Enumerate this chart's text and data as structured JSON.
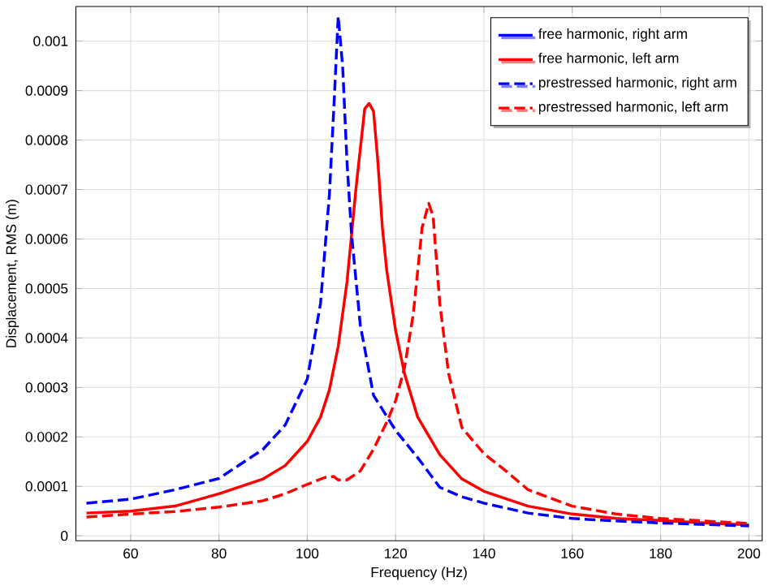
{
  "chart_data": {
    "type": "line",
    "xlabel": "Frequency (Hz)",
    "ylabel": "Displacement, RMS (m)",
    "xlim": [
      47.6,
      203
    ],
    "ylim": [
      -1e-05,
      0.00107
    ],
    "xticks": [
      60,
      80,
      100,
      120,
      140,
      160,
      180,
      200
    ],
    "yticks": [
      0,
      0.0001,
      0.0002,
      0.0003,
      0.0004,
      0.0005,
      0.0006,
      0.0007,
      0.0008,
      0.0009,
      0.001
    ],
    "grid": true,
    "legend": "top right",
    "marker": "none",
    "series": [
      {
        "name": "free harmonic, right arm",
        "color": "#0000ff",
        "line_style": "solid",
        "values": [
          null
        ]
      },
      {
        "name": "free harmonic, left arm",
        "color": "#ff0000",
        "line_style": "solid",
        "x": [
          50,
          60,
          70,
          80,
          90,
          95,
          100,
          103,
          105,
          107,
          109,
          111,
          113,
          114,
          115,
          116,
          117,
          118,
          120,
          122,
          125,
          130,
          135,
          140,
          150,
          160,
          170,
          180,
          190,
          200
        ],
        "values": [
          4.6e-05,
          5e-05,
          6e-05,
          8.5e-05,
          0.000115,
          0.000142,
          0.000191,
          0.00024,
          0.000295,
          0.000383,
          0.000514,
          0.0007,
          0.000863,
          0.000874,
          0.000858,
          0.000754,
          0.000623,
          0.000536,
          0.000415,
          0.000328,
          0.00024,
          0.000164,
          0.000115,
          9e-05,
          6e-05,
          4.4e-05,
          3.5e-05,
          3.1e-05,
          2.6e-05,
          2.2e-05
        ]
      },
      {
        "name": "prestressed harmonic, right arm",
        "color": "#0000ff",
        "line_style": "dashed",
        "x": [
          50,
          60,
          70,
          80,
          90,
          95,
          100,
          103,
          105,
          106,
          107,
          108,
          109,
          110,
          112,
          115,
          120,
          125,
          130,
          135,
          140,
          150,
          160,
          170,
          180,
          200
        ],
        "values": [
          6.6e-05,
          7.4e-05,
          9.3e-05,
          0.000116,
          0.000175,
          0.000224,
          0.000317,
          0.00047,
          0.000689,
          0.000863,
          0.00105,
          0.00095,
          0.000754,
          0.000612,
          0.000426,
          0.000284,
          0.000213,
          0.000158,
          9.8e-05,
          7.9e-05,
          6.6e-05,
          4.6e-05,
          3.5e-05,
          3e-05,
          2.6e-05,
          2e-05
        ]
      },
      {
        "name": "prestressed harmonic, left arm",
        "color": "#ff0000",
        "line_style": "dashed",
        "x": [
          50,
          60,
          70,
          80,
          90,
          95,
          100,
          104,
          106,
          107,
          109,
          112,
          115,
          118,
          120,
          122,
          124,
          126,
          127.5,
          128.5,
          130,
          132,
          135,
          140,
          145,
          150,
          160,
          170,
          180,
          190,
          200
        ],
        "values": [
          3.8e-05,
          4.4e-05,
          4.9e-05,
          5.8e-05,
          7.1e-05,
          8.5e-05,
          0.000104,
          0.000118,
          0.00012,
          0.000113,
          0.000113,
          0.000131,
          0.000175,
          0.00023,
          0.000273,
          0.000339,
          0.000448,
          0.000623,
          0.000672,
          0.000645,
          0.00047,
          0.000328,
          0.000219,
          0.000166,
          0.000131,
          9.3e-05,
          6e-05,
          4.4e-05,
          3.5e-05,
          3e-05,
          2.5e-05
        ]
      }
    ]
  }
}
